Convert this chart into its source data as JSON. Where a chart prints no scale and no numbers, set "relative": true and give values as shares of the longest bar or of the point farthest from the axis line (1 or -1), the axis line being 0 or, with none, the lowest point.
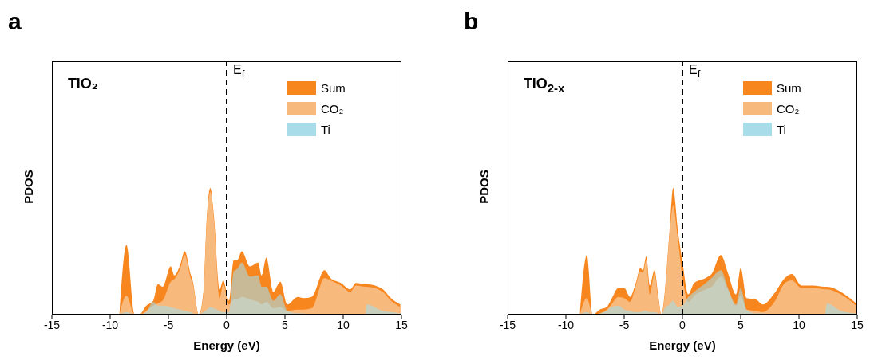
{
  "chart_data": [
    {
      "type": "area",
      "title": "a",
      "xlabel": "Energy (eV)",
      "ylabel": "PDOS",
      "annotations": [
        "TiO₂"
      ],
      "relative": true,
      "legend": "top right",
      "xlim": [
        -15,
        15
      ],
      "xticks": [
        -15,
        -10,
        -5,
        0,
        5,
        10,
        15
      ],
      "ref_lines": [
        {
          "axis": "x",
          "value": 0,
          "label": "E$_{f}$",
          "line_style": "dashed",
          "color": "#000000"
        }
      ],
      "x": [
        -9.2,
        -8.6,
        -7.9,
        -7.5,
        -6.9,
        -6.3,
        -5.9,
        -5.5,
        -4.8,
        -4.5,
        -4.0,
        -3.6,
        -3.1,
        -2.9,
        -2.4,
        -2.0,
        -1.7,
        -1.4,
        -1.1,
        -0.6,
        -0.3,
        0.2,
        0.6,
        0.9,
        1.3,
        2.0,
        2.7,
        3.0,
        3.4,
        4.0,
        4.6,
        5.2,
        6.1,
        6.6,
        7.3,
        8.4,
        8.9,
        9.8,
        10.6,
        11.1,
        11.9,
        12.0,
        13.4,
        14.1,
        14.9
      ],
      "series": [
        {
          "name": "Sum",
          "color": "#f8861f",
          "values": [
            0,
            0.55,
            0,
            0,
            0.07,
            0.11,
            0.24,
            0.22,
            0.38,
            0.31,
            0.39,
            0.5,
            0.32,
            0.26,
            0,
            0.18,
            0.78,
            1,
            0.78,
            0.2,
            0.27,
            0.11,
            0.43,
            0.43,
            0.5,
            0.38,
            0.41,
            0.31,
            0.45,
            0.18,
            0.26,
            0.08,
            0.14,
            0.13,
            0.14,
            0.35,
            0.29,
            0.25,
            0.2,
            0.25,
            0.24,
            0.24,
            0.2,
            0.13,
            0.08
          ]
        },
        {
          "name": "CO₂",
          "color": "#f8b97c",
          "values": [
            0,
            0.15,
            0,
            0,
            0.03,
            0.07,
            0.09,
            0.11,
            0.26,
            0.28,
            0.36,
            0.47,
            0.29,
            0.24,
            0,
            0.15,
            0.75,
            0.97,
            0.75,
            0.13,
            0.24,
            0.08,
            0.12,
            0.12,
            0.14,
            0.12,
            0.1,
            0.08,
            0.1,
            0.05,
            0.06,
            0.03,
            0.04,
            0.04,
            0.05,
            0.29,
            0.27,
            0.23,
            0.18,
            0.23,
            0.22,
            0.22,
            0.18,
            0.11,
            0.06
          ]
        },
        {
          "name": "Ti",
          "color": "#a8dce8",
          "values": [
            0,
            0.02,
            0,
            0,
            0.02,
            0.1,
            0.07,
            0.07,
            0.06,
            0.05,
            0.04,
            0.03,
            0.02,
            0.01,
            0,
            0.02,
            0.04,
            0.06,
            0.05,
            0.03,
            0.02,
            0.02,
            0.34,
            0.36,
            0.41,
            0.3,
            0.31,
            0.22,
            0.22,
            0.11,
            0.16,
            0.03,
            0.01,
            0.01,
            0,
            0,
            0,
            0,
            0,
            0,
            0,
            0.08,
            0.03,
            0.02,
            0.01
          ]
        }
      ]
    },
    {
      "type": "area",
      "title": "b",
      "xlabel": "Energy (eV)",
      "ylabel": "PDOS",
      "annotations": [
        "TiO$_{2-x}$"
      ],
      "relative": true,
      "legend": "top right",
      "xlim": [
        -15,
        15
      ],
      "xticks": [
        -15,
        -10,
        -5,
        0,
        5,
        10,
        15
      ],
      "ref_lines": [
        {
          "axis": "x",
          "value": 0,
          "label": "E$_{f}$",
          "line_style": "dashed",
          "color": "#000000"
        }
      ],
      "x": [
        -8.8,
        -8.2,
        -7.7,
        -7.1,
        -6.5,
        -6.1,
        -5.5,
        -5.0,
        -4.5,
        -4.0,
        -3.6,
        -3.4,
        -3.1,
        -2.8,
        -2.4,
        -2.1,
        -1.8,
        -1.5,
        -1.1,
        -0.8,
        -0.4,
        0,
        0.5,
        1.0,
        2.0,
        2.5,
        3.3,
        3.9,
        4.6,
        5.0,
        5.5,
        6.3,
        6.9,
        7.9,
        8.8,
        9.4,
        10.2,
        11.2,
        12.2,
        12.4,
        13.6,
        14.9
      ],
      "series": [
        {
          "name": "Sum",
          "color": "#f8861f",
          "values": [
            0,
            0.47,
            0,
            0.04,
            0.06,
            0.12,
            0.21,
            0.21,
            0.14,
            0.25,
            0.37,
            0.35,
            0.46,
            0.23,
            0.35,
            0.17,
            0,
            0.19,
            0.67,
            1,
            0.67,
            0.42,
            0.16,
            0.25,
            0.29,
            0.32,
            0.47,
            0.33,
            0.16,
            0.37,
            0.13,
            0.12,
            0.08,
            0.17,
            0.29,
            0.32,
            0.23,
            0.23,
            0.22,
            0.22,
            0.18,
            0.09
          ]
        },
        {
          "name": "CO₂",
          "color": "#f8b97c",
          "values": [
            0,
            0.13,
            0,
            0.01,
            0.04,
            0.08,
            0.14,
            0.13,
            0.1,
            0.23,
            0.34,
            0.33,
            0.43,
            0.16,
            0.32,
            0.14,
            0,
            0.16,
            0.64,
            0.86,
            0.6,
            0.3,
            0.1,
            0.15,
            0.2,
            0.22,
            0.3,
            0.2,
            0.07,
            0.15,
            0.04,
            0.03,
            0.02,
            0.1,
            0.25,
            0.27,
            0.21,
            0.21,
            0.2,
            0.2,
            0.16,
            0.07
          ]
        },
        {
          "name": "Ti",
          "color": "#a8dce8",
          "values": [
            0,
            0.02,
            0,
            0.01,
            0.03,
            0.06,
            0.07,
            0.04,
            0.03,
            0.02,
            0.02,
            0.03,
            0.03,
            0.02,
            0.02,
            0.01,
            0,
            0.05,
            0.08,
            0.11,
            0.06,
            0.07,
            0.14,
            0.18,
            0.25,
            0.29,
            0.35,
            0.21,
            0.08,
            0.21,
            0.04,
            0.01,
            0.01,
            0,
            0,
            0,
            0,
            0,
            0,
            0.09,
            0.03,
            0.01
          ]
        }
      ]
    }
  ]
}
